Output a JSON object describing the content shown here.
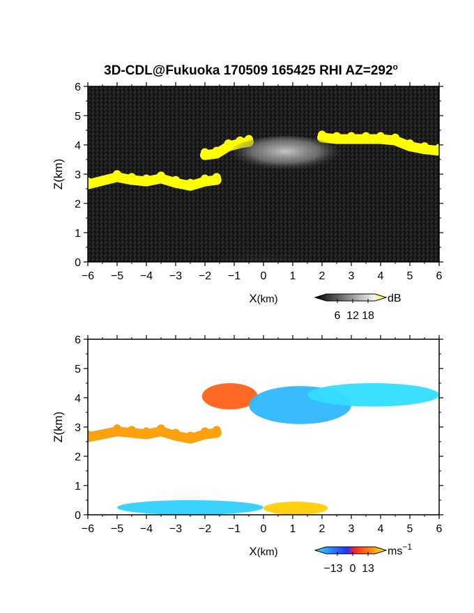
{
  "title": "3D-CDL@Fukuoka 170509 165425 RHI AZ=292",
  "title_superscript": "o",
  "chart_data": [
    {
      "type": "heatmap",
      "name": "reflectivity",
      "xlabel_main": "X",
      "xlabel_unit": "(km)",
      "ylabel": "Z(km)",
      "xlim": [
        -6,
        6
      ],
      "ylim": [
        0,
        6
      ],
      "xticks": [
        "−6",
        "−5",
        "−4",
        "−3",
        "−2",
        "−1",
        "0",
        "1",
        "2",
        "3",
        "4",
        "5",
        "6"
      ],
      "yticks": [
        "0",
        "1",
        "2",
        "3",
        "4",
        "5",
        "6"
      ],
      "background_color": "#1a1a1a",
      "colorbar": {
        "unit": "dB",
        "ticks": [
          "6",
          "12",
          "18"
        ],
        "colors": [
          "#000000",
          "#ffffff",
          "#ffff00"
        ]
      },
      "features": [
        {
          "kind": "saturated_layer",
          "color": "#ffff00",
          "x": [
            -6,
            -5,
            -4.5,
            -4,
            -3.5,
            -3,
            -2.5,
            -2,
            -1.6
          ],
          "z": [
            2.65,
            2.9,
            2.8,
            2.75,
            2.85,
            2.7,
            2.6,
            2.75,
            2.8
          ]
        },
        {
          "kind": "saturated_layer",
          "color": "#ffff00",
          "x": [
            -2,
            -1.6,
            -1.2,
            -0.8,
            -0.5
          ],
          "z": [
            3.65,
            3.7,
            3.95,
            4.05,
            4.1
          ]
        },
        {
          "kind": "saturated_layer",
          "color": "#ffff00",
          "x": [
            2,
            2.5,
            3,
            3.5,
            4,
            4.5,
            5,
            5.5,
            6
          ],
          "z": [
            4.25,
            4.2,
            4.2,
            4.2,
            4.2,
            4.15,
            3.95,
            3.85,
            3.8
          ]
        },
        {
          "kind": "cloud",
          "x_range": [
            -1.2,
            2.7
          ],
          "z_range": [
            3.0,
            4.3
          ],
          "intensity": 12
        },
        {
          "kind": "near_ground_return",
          "x_range": [
            -2.5,
            2.5
          ],
          "z_range": [
            0.0,
            0.8
          ],
          "intensity": 6
        }
      ]
    },
    {
      "type": "heatmap",
      "name": "doppler_velocity",
      "xlabel_main": "X",
      "xlabel_unit": "(km)",
      "ylabel": "Z(km)",
      "xlim": [
        -6,
        6
      ],
      "ylim": [
        0,
        6
      ],
      "xticks": [
        "−6",
        "−5",
        "−4",
        "−3",
        "−2",
        "−1",
        "0",
        "1",
        "2",
        "3",
        "4",
        "5",
        "6"
      ],
      "yticks": [
        "0",
        "1",
        "2",
        "3",
        "4",
        "5",
        "6"
      ],
      "background_color": "#ffffff",
      "colorbar": {
        "unit": "ms",
        "unit_superscript": "−1",
        "ticks": [
          "−13",
          "0",
          "13"
        ],
        "colors": [
          "#33ddff",
          "#2233ff",
          "#ff2222",
          "#ffee00"
        ]
      },
      "features": [
        {
          "kind": "layer",
          "velocity": 8,
          "x": [
            -6,
            -5,
            -4.5,
            -4,
            -3.5,
            -3,
            -2.5,
            -2,
            -1.6
          ],
          "z": [
            2.65,
            2.85,
            2.8,
            2.75,
            2.85,
            2.7,
            2.6,
            2.75,
            2.8
          ]
        },
        {
          "kind": "region",
          "velocity": 4,
          "x_range": [
            -2.1,
            -0.2
          ],
          "z_range": [
            3.6,
            4.5
          ]
        },
        {
          "kind": "region",
          "velocity": -10,
          "x_range": [
            -0.5,
            3.0
          ],
          "z_range": [
            3.1,
            4.4
          ]
        },
        {
          "kind": "region",
          "velocity": -13,
          "x_range": [
            1.5,
            6.0
          ],
          "z_range": [
            3.7,
            4.5
          ]
        },
        {
          "kind": "region",
          "velocity": -12,
          "x_range": [
            -5.0,
            0.0
          ],
          "z_range": [
            0.0,
            0.5
          ]
        },
        {
          "kind": "region",
          "velocity": 11,
          "x_range": [
            0.0,
            2.2
          ],
          "z_range": [
            0.0,
            0.45
          ]
        }
      ]
    }
  ]
}
